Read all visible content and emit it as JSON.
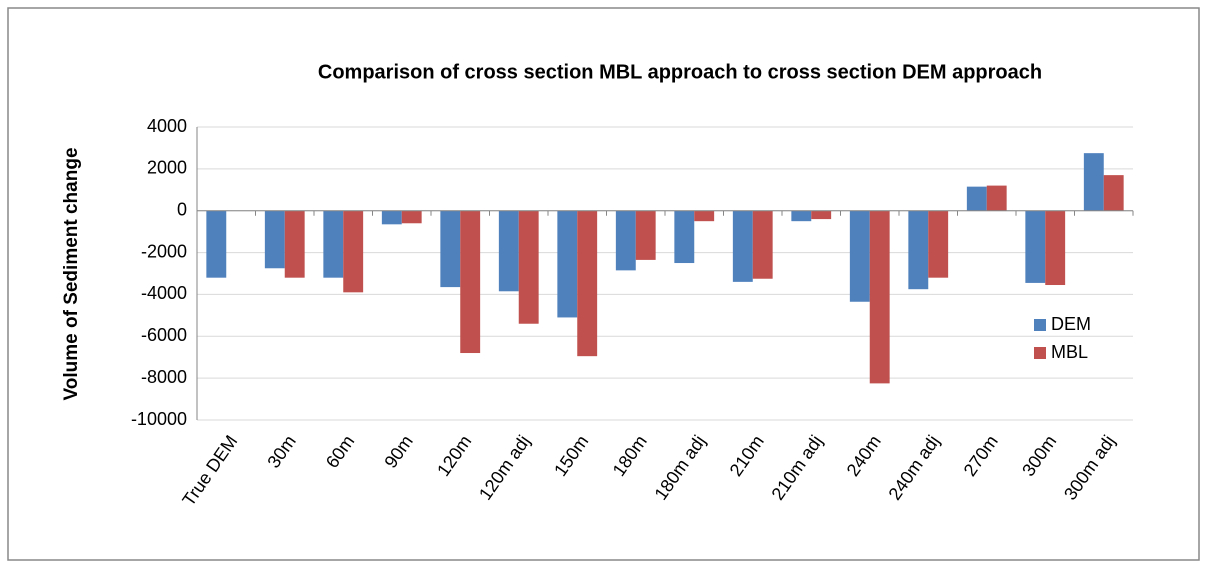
{
  "chart_data": {
    "type": "bar",
    "title": "Comparison of cross section MBL approach to cross section DEM approach",
    "y_label": "Volume of Sediment change",
    "categories": [
      "True DEM",
      "30m",
      "60m",
      "90m",
      "120m",
      "120m adj",
      "150m",
      "180m",
      "180m adj",
      "210m",
      "210m adj",
      "240m",
      "240m adj",
      "270m",
      "300m",
      "300m adj"
    ],
    "series": [
      {
        "name": "DEM",
        "color": "#4f81bd",
        "values": [
          -3200,
          -2750,
          -3200,
          -650,
          -3650,
          -3850,
          -5100,
          -2850,
          -2500,
          -3400,
          -500,
          -4350,
          -3750,
          1150,
          -3450,
          2750
        ]
      },
      {
        "name": "MBL",
        "color": "#c0504d",
        "values": [
          null,
          -3200,
          -3900,
          -600,
          -6800,
          -5400,
          -6950,
          -2350,
          -500,
          -3250,
          -400,
          -8250,
          -3200,
          1200,
          -3550,
          1700
        ]
      }
    ],
    "ylim": [
      -10000,
      4000
    ],
    "yticks": [
      -10000,
      -8000,
      -6000,
      -4000,
      -2000,
      0,
      2000,
      4000
    ],
    "grid": true,
    "legend": "right"
  }
}
